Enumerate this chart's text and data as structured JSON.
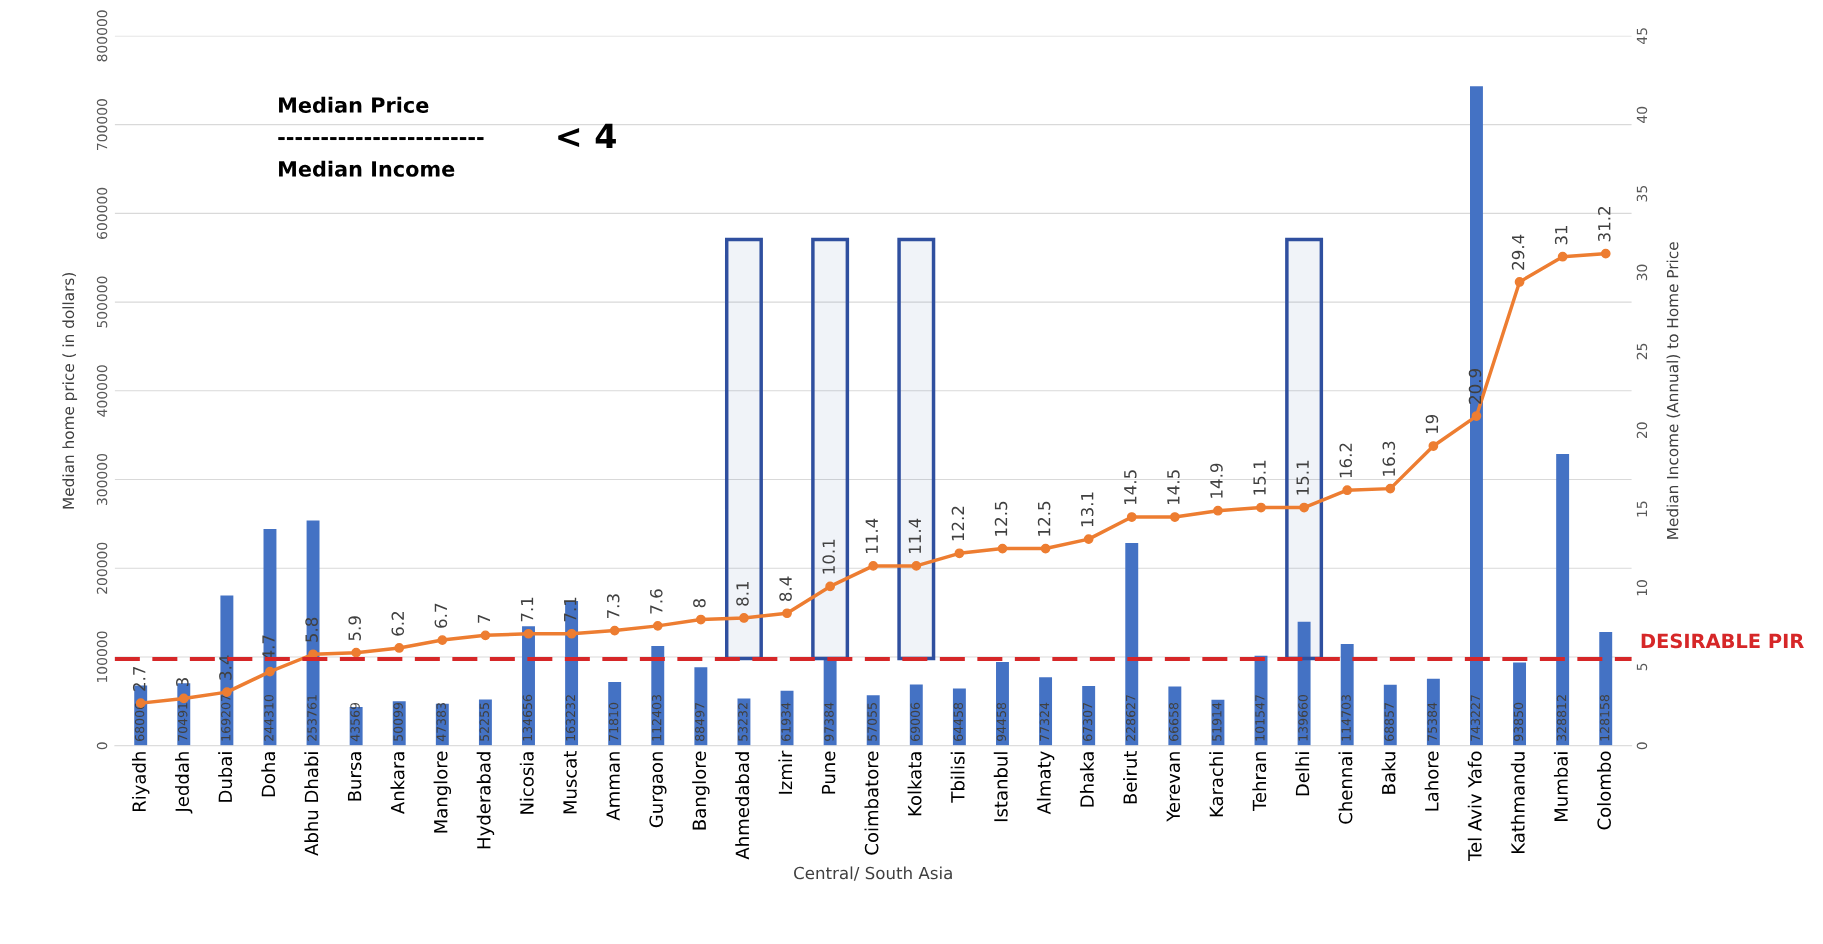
{
  "chart_data": {
    "type": "bar",
    "categories": [
      "Riyadh",
      "Jeddah",
      "Dubai",
      "Doha",
      "Abhu Dhabi",
      "Bursa",
      "Ankara",
      "Manglore",
      "Hyderabad",
      "Nicosia",
      "Muscat",
      "Amman",
      "Gurgaon",
      "Banglore",
      "Ahmedabad",
      "Izmir",
      "Pune",
      "Coimbatore",
      "Kolkata",
      "Tbilisi",
      "Istanbul",
      "Almaty",
      "Dhaka",
      "Beirut",
      "Yerevan",
      "Karachi",
      "Tehran",
      "Delhi",
      "Chennai",
      "Baku",
      "Lahore",
      "Tel Aviv Yafo",
      "Kathmandu",
      "Mumbai",
      "Colombo"
    ],
    "series": [
      {
        "color": "#4472c4",
        "values": [
          68006,
          70491,
          169207,
          244310,
          253761,
          43569,
          50099,
          47383,
          52255,
          134656,
          163232,
          71810,
          112403,
          88497,
          53232,
          61934,
          97384,
          57055,
          69006,
          64458,
          94458,
          77324,
          67307,
          228627,
          66658,
          51914,
          101547,
          139660,
          114703,
          68857,
          75384,
          743227,
          93850,
          328812,
          128158
        ]
      },
      {
        "type": "line",
        "axis": "y2",
        "color": "#ed7d31",
        "values": [
          2.7,
          3,
          3.4,
          4.7,
          5.8,
          5.9,
          6.2,
          6.7,
          7,
          7.1,
          7.1,
          7.3,
          7.6,
          8,
          8.1,
          8.4,
          10.1,
          11.4,
          11.4,
          12.2,
          12.5,
          12.5,
          13.1,
          14.5,
          14.5,
          14.9,
          15.1,
          15.1,
          16.2,
          16.3,
          19,
          20.9,
          29.4,
          31,
          31.2
        ]
      }
    ],
    "xlabel": "Central/ South Asia",
    "ylabel": "Median home price ( in dollars)",
    "y2label": "Median Income (Annual) to Home Price",
    "ylim": [
      0,
      800000
    ],
    "yticks": [
      0,
      100000,
      200000,
      300000,
      400000,
      500000,
      600000,
      700000,
      800000
    ],
    "y2lim": [
      0,
      45
    ],
    "y2ticks": [
      0,
      5,
      10,
      15,
      20,
      25,
      30,
      35,
      40,
      45
    ],
    "ref_lines": [
      {
        "axis": "y2",
        "value": 5.5,
        "label": "DESIRABLE PIR",
        "color": "#d62728",
        "line_style": "dashed"
      }
    ],
    "bands": [
      {
        "axis": "x",
        "from": "Ahmedabad",
        "to": "Ahmedabad",
        "color": "#2f4f9f"
      },
      {
        "axis": "x",
        "from": "Pune",
        "to": "Pune",
        "color": "#2f4f9f"
      },
      {
        "axis": "x",
        "from": "Kolkata",
        "to": "Kolkata",
        "color": "#2f4f9f"
      },
      {
        "axis": "x",
        "from": "Delhi",
        "to": "Delhi",
        "color": "#2f4f9f"
      }
    ],
    "annotations": [
      "Median Price",
      "------------------------",
      "Median Income",
      "< 4"
    ],
    "data_labels": true,
    "grid": "y",
    "marker": "circle",
    "line_style": "solid"
  }
}
